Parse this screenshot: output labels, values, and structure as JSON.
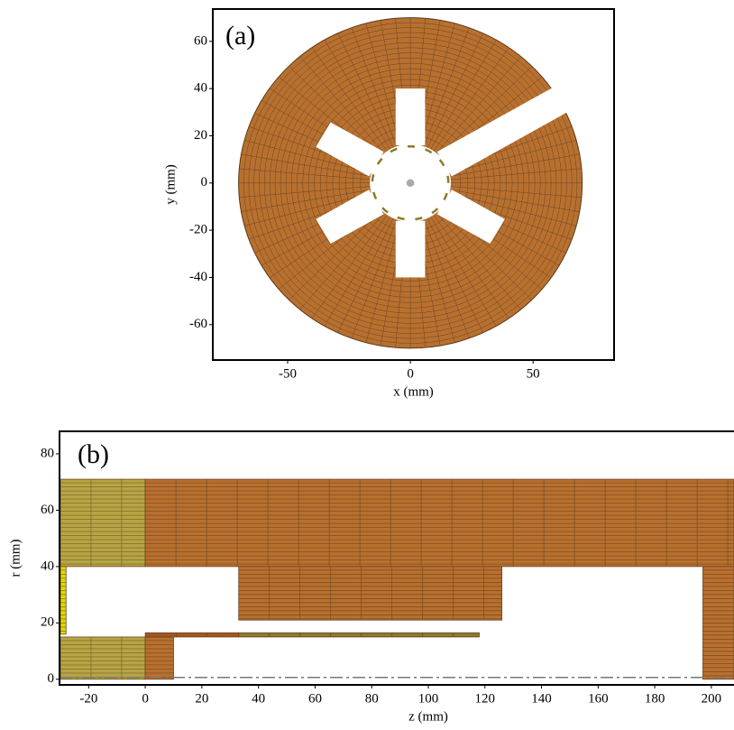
{
  "chart_data": [
    {
      "type": "disk-mesh",
      "label": "(a)",
      "xlabel": "x (mm)",
      "ylabel": "y (mm)",
      "xlim": [
        -80.5,
        83
      ],
      "ylim": [
        -75,
        73.7
      ],
      "xticks": [
        -50,
        0,
        50
      ],
      "yticks": [
        -60,
        -40,
        -20,
        0,
        20,
        40,
        60
      ],
      "outer_radius": 70,
      "inner_radius": 16.5,
      "color": "#b8702f",
      "slots": [
        {
          "angle": 90,
          "r": [
            16,
            40
          ],
          "width": 12
        },
        {
          "angle": 30,
          "r": [
            16,
            78
          ],
          "width": 12
        },
        {
          "angle": 150,
          "r": [
            16,
            41
          ],
          "width": 12
        },
        {
          "angle": 210,
          "r": [
            16,
            41
          ],
          "width": 12
        },
        {
          "angle": 270,
          "r": [
            16,
            40
          ],
          "width": 12
        },
        {
          "angle": 330,
          "r": [
            16,
            41
          ],
          "width": 12
        }
      ]
    },
    {
      "type": "rz-mesh",
      "label": "(b)",
      "xlabel": "z (mm)",
      "ylabel": "r (mm)",
      "xlim": [
        -30.3,
        208
      ],
      "ylim": [
        -2,
        88
      ],
      "xticks": [
        -20,
        0,
        20,
        40,
        60,
        80,
        100,
        120,
        140,
        160,
        180,
        200
      ],
      "yticks": [
        0,
        20,
        40,
        60,
        80
      ],
      "regions": [
        {
          "z": [
            -30,
            0
          ],
          "r": [
            40,
            71
          ],
          "color": "#b5a544"
        },
        {
          "z": [
            -30,
            0
          ],
          "r": [
            0,
            15
          ],
          "color": "#b5a544"
        },
        {
          "z": [
            0,
            208
          ],
          "r": [
            40,
            71
          ],
          "color": "#b8702f"
        },
        {
          "z": [
            33,
            126
          ],
          "r": [
            21,
            40
          ],
          "color": "#b8702f"
        },
        {
          "z": [
            0,
            10
          ],
          "r": [
            0,
            15
          ],
          "color": "#b8702f"
        },
        {
          "z": [
            0,
            33
          ],
          "r": [
            15,
            16.5
          ],
          "color": "#a0581f"
        },
        {
          "z": [
            33,
            118
          ],
          "r": [
            15,
            16.5
          ],
          "color": "#8c7a2a"
        },
        {
          "z": [
            197,
            208
          ],
          "r": [
            0,
            40
          ],
          "color": "#b8702f"
        },
        {
          "z": [
            -30,
            -28
          ],
          "r": [
            16,
            40
          ],
          "color": "#e0d800"
        }
      ]
    }
  ]
}
